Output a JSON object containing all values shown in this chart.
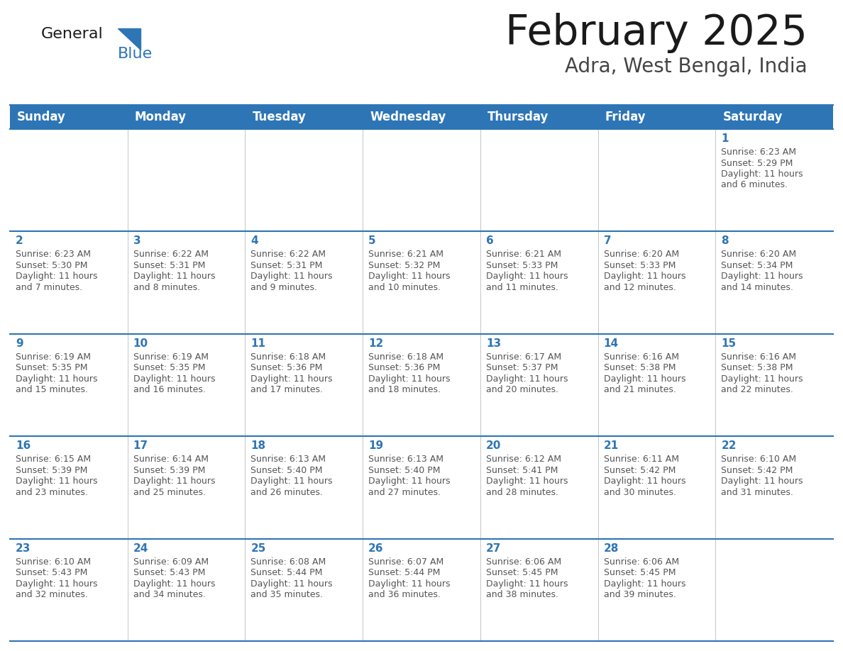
{
  "title": "February 2025",
  "subtitle": "Adra, West Bengal, India",
  "header_bg": "#2E75B6",
  "header_text_color": "#FFFFFF",
  "days_of_week": [
    "Sunday",
    "Monday",
    "Tuesday",
    "Wednesday",
    "Thursday",
    "Friday",
    "Saturday"
  ],
  "cell_line_color": "#2E75B6",
  "title_color": "#1a1a1a",
  "subtitle_color": "#444444",
  "day_number_color": "#2E75B6",
  "info_text_color": "#555555",
  "logo_general_color": "#1a1a1a",
  "logo_blue_color": "#2E75B6",
  "calendar_data": [
    [
      null,
      null,
      null,
      null,
      null,
      null,
      {
        "day": 1,
        "sunrise": "6:23 AM",
        "sunset": "5:29 PM",
        "daylight": "11 hours and 6 minutes."
      }
    ],
    [
      {
        "day": 2,
        "sunrise": "6:23 AM",
        "sunset": "5:30 PM",
        "daylight": "11 hours and 7 minutes."
      },
      {
        "day": 3,
        "sunrise": "6:22 AM",
        "sunset": "5:31 PM",
        "daylight": "11 hours and 8 minutes."
      },
      {
        "day": 4,
        "sunrise": "6:22 AM",
        "sunset": "5:31 PM",
        "daylight": "11 hours and 9 minutes."
      },
      {
        "day": 5,
        "sunrise": "6:21 AM",
        "sunset": "5:32 PM",
        "daylight": "11 hours and 10 minutes."
      },
      {
        "day": 6,
        "sunrise": "6:21 AM",
        "sunset": "5:33 PM",
        "daylight": "11 hours and 11 minutes."
      },
      {
        "day": 7,
        "sunrise": "6:20 AM",
        "sunset": "5:33 PM",
        "daylight": "11 hours and 12 minutes."
      },
      {
        "day": 8,
        "sunrise": "6:20 AM",
        "sunset": "5:34 PM",
        "daylight": "11 hours and 14 minutes."
      }
    ],
    [
      {
        "day": 9,
        "sunrise": "6:19 AM",
        "sunset": "5:35 PM",
        "daylight": "11 hours and 15 minutes."
      },
      {
        "day": 10,
        "sunrise": "6:19 AM",
        "sunset": "5:35 PM",
        "daylight": "11 hours and 16 minutes."
      },
      {
        "day": 11,
        "sunrise": "6:18 AM",
        "sunset": "5:36 PM",
        "daylight": "11 hours and 17 minutes."
      },
      {
        "day": 12,
        "sunrise": "6:18 AM",
        "sunset": "5:36 PM",
        "daylight": "11 hours and 18 minutes."
      },
      {
        "day": 13,
        "sunrise": "6:17 AM",
        "sunset": "5:37 PM",
        "daylight": "11 hours and 20 minutes."
      },
      {
        "day": 14,
        "sunrise": "6:16 AM",
        "sunset": "5:38 PM",
        "daylight": "11 hours and 21 minutes."
      },
      {
        "day": 15,
        "sunrise": "6:16 AM",
        "sunset": "5:38 PM",
        "daylight": "11 hours and 22 minutes."
      }
    ],
    [
      {
        "day": 16,
        "sunrise": "6:15 AM",
        "sunset": "5:39 PM",
        "daylight": "11 hours and 23 minutes."
      },
      {
        "day": 17,
        "sunrise": "6:14 AM",
        "sunset": "5:39 PM",
        "daylight": "11 hours and 25 minutes."
      },
      {
        "day": 18,
        "sunrise": "6:13 AM",
        "sunset": "5:40 PM",
        "daylight": "11 hours and 26 minutes."
      },
      {
        "day": 19,
        "sunrise": "6:13 AM",
        "sunset": "5:40 PM",
        "daylight": "11 hours and 27 minutes."
      },
      {
        "day": 20,
        "sunrise": "6:12 AM",
        "sunset": "5:41 PM",
        "daylight": "11 hours and 28 minutes."
      },
      {
        "day": 21,
        "sunrise": "6:11 AM",
        "sunset": "5:42 PM",
        "daylight": "11 hours and 30 minutes."
      },
      {
        "day": 22,
        "sunrise": "6:10 AM",
        "sunset": "5:42 PM",
        "daylight": "11 hours and 31 minutes."
      }
    ],
    [
      {
        "day": 23,
        "sunrise": "6:10 AM",
        "sunset": "5:43 PM",
        "daylight": "11 hours and 32 minutes."
      },
      {
        "day": 24,
        "sunrise": "6:09 AM",
        "sunset": "5:43 PM",
        "daylight": "11 hours and 34 minutes."
      },
      {
        "day": 25,
        "sunrise": "6:08 AM",
        "sunset": "5:44 PM",
        "daylight": "11 hours and 35 minutes."
      },
      {
        "day": 26,
        "sunrise": "6:07 AM",
        "sunset": "5:44 PM",
        "daylight": "11 hours and 36 minutes."
      },
      {
        "day": 27,
        "sunrise": "6:06 AM",
        "sunset": "5:45 PM",
        "daylight": "11 hours and 38 minutes."
      },
      {
        "day": 28,
        "sunrise": "6:06 AM",
        "sunset": "5:45 PM",
        "daylight": "11 hours and 39 minutes."
      },
      null
    ]
  ]
}
